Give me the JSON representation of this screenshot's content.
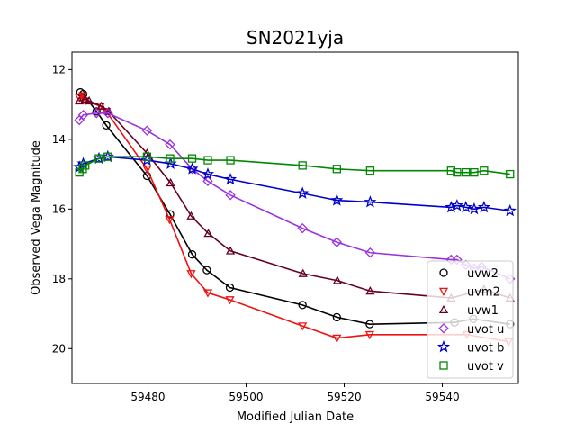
{
  "chart_data": {
    "type": "line",
    "title": "SN2021yja",
    "xlabel": "Modified Julian Date",
    "ylabel": "Observed Vega Magnitude",
    "xlim": [
      59464.5,
      59555.5
    ],
    "ylim": [
      21.0,
      11.5
    ],
    "y_inverted": true,
    "xticks": [
      59480,
      59500,
      59520,
      59540
    ],
    "yticks": [
      12,
      14,
      16,
      18,
      20
    ],
    "grid": false,
    "legend_position": "lower-right",
    "series": [
      {
        "name": "uvw2",
        "color": "#000000",
        "marker": "circle",
        "x": [
          59466.2,
          59466.8,
          59469.5,
          59471.5,
          59479.8,
          59484.5,
          59489.0,
          59492.0,
          59496.7,
          59511.5,
          59518.5,
          59525.2,
          59542.5,
          59546.3,
          59553.8
        ],
        "y": [
          12.65,
          12.7,
          13.2,
          13.6,
          15.05,
          16.15,
          17.3,
          17.75,
          18.25,
          18.75,
          19.1,
          19.3,
          19.25,
          19.15,
          19.3
        ]
      },
      {
        "name": "uvm2",
        "color": "#ee1111",
        "marker": "triangle-down",
        "x": [
          59466.0,
          59466.7,
          59467.2,
          59470.3,
          59471.5,
          59479.8,
          59484.4,
          59488.8,
          59492.2,
          59496.7,
          59511.5,
          59518.5,
          59525.2,
          59545.0,
          59553.5
        ],
        "y": [
          12.8,
          12.75,
          12.9,
          13.05,
          13.2,
          14.85,
          16.3,
          17.85,
          18.4,
          18.6,
          19.35,
          19.7,
          19.6,
          19.6,
          19.8
        ]
      },
      {
        "name": "uvw1",
        "color": "#660022",
        "marker": "triangle-up",
        "x": [
          59466.0,
          59467.2,
          59468.0,
          59470.5,
          59472.0,
          59479.8,
          59484.6,
          59488.8,
          59492.3,
          59496.8,
          59511.6,
          59518.6,
          59525.3,
          59541.8,
          59548.5,
          59553.8
        ],
        "y": [
          12.9,
          12.85,
          12.9,
          13.05,
          13.2,
          14.4,
          15.25,
          16.2,
          16.7,
          17.2,
          17.85,
          18.05,
          18.35,
          18.55,
          18.3,
          18.55
        ]
      },
      {
        "name": "uvot u",
        "color": "#9933dd",
        "marker": "diamond",
        "x": [
          59466.0,
          59466.8,
          59469.5,
          59471.8,
          59479.8,
          59484.5,
          59489.0,
          59492.2,
          59496.8,
          59511.5,
          59518.5,
          59525.3,
          59541.8,
          59543.0,
          59544.8,
          59546.5,
          59548.0,
          59553.8
        ],
        "y": [
          13.45,
          13.3,
          13.25,
          13.25,
          13.75,
          14.15,
          14.85,
          15.2,
          15.6,
          16.55,
          16.95,
          17.25,
          17.45,
          17.45,
          17.6,
          17.7,
          17.65,
          18.0
        ]
      },
      {
        "name": "uvot b",
        "color": "#0000cc",
        "marker": "star",
        "x": [
          59466.0,
          59466.8,
          59470.0,
          59471.8,
          59479.8,
          59484.6,
          59489.0,
          59492.2,
          59496.8,
          59511.5,
          59518.5,
          59525.3,
          59541.8,
          59543.0,
          59544.8,
          59546.5,
          59548.5,
          59553.8
        ],
        "y": [
          14.8,
          14.7,
          14.55,
          14.5,
          14.6,
          14.7,
          14.85,
          15.0,
          15.15,
          15.55,
          15.75,
          15.8,
          15.95,
          15.9,
          15.95,
          16.0,
          15.95,
          16.05
        ]
      },
      {
        "name": "uvot v",
        "color": "#008800",
        "marker": "square",
        "x": [
          59466.0,
          59466.7,
          59467.2,
          59470.0,
          59471.8,
          59479.8,
          59484.5,
          59489.0,
          59492.2,
          59496.8,
          59511.5,
          59518.5,
          59525.3,
          59541.8,
          59543.0,
          59544.8,
          59546.5,
          59548.5,
          59553.8
        ],
        "y": [
          14.95,
          14.85,
          14.75,
          14.55,
          14.5,
          14.5,
          14.55,
          14.55,
          14.6,
          14.6,
          14.75,
          14.85,
          14.9,
          14.9,
          14.95,
          14.95,
          14.95,
          14.9,
          15.0
        ]
      }
    ]
  }
}
